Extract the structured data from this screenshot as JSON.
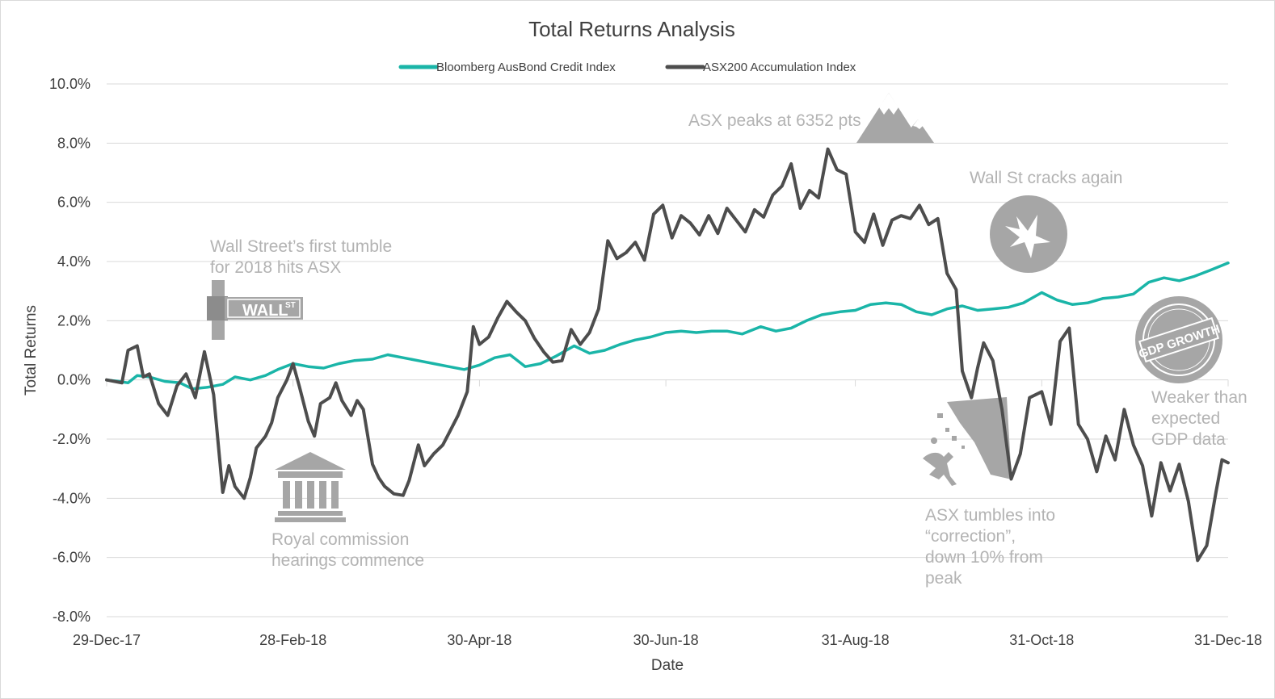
{
  "chart_data": {
    "type": "line",
    "title": "Total Returns Analysis",
    "xlabel": "Date",
    "ylabel": "Total Returns",
    "x_range": [
      "2017-12-29",
      "2018-12-31"
    ],
    "ylim": [
      -8.0,
      10.0
    ],
    "y_ticks": [
      "10.0%",
      "8.0%",
      "6.0%",
      "4.0%",
      "2.0%",
      "0.0%",
      "-2.0%",
      "-4.0%",
      "-6.0%",
      "-8.0%"
    ],
    "y_tick_values": [
      10,
      8,
      6,
      4,
      2,
      0,
      -2,
      -4,
      -6,
      -8
    ],
    "x_ticks": [
      "29-Dec-17",
      "28-Feb-18",
      "30-Apr-18",
      "30-Jun-18",
      "31-Aug-18",
      "31-Oct-18",
      "31-Dec-18"
    ],
    "x_tick_dates": [
      "2017-12-29",
      "2018-02-28",
      "2018-04-30",
      "2018-06-30",
      "2018-08-31",
      "2018-10-31",
      "2018-12-31"
    ],
    "grid": "horizontal",
    "legend_position": "top-center",
    "series": [
      {
        "name": "Bloomberg AusBond Credit Index",
        "color": "#1ab5a8",
        "points": [
          [
            "2017-12-29",
            0.0
          ],
          [
            "2018-01-02",
            -0.05
          ],
          [
            "2018-01-05",
            -0.1
          ],
          [
            "2018-01-08",
            0.15
          ],
          [
            "2018-01-12",
            0.1
          ],
          [
            "2018-01-17",
            -0.05
          ],
          [
            "2018-01-22",
            -0.1
          ],
          [
            "2018-01-26",
            -0.3
          ],
          [
            "2018-01-31",
            -0.25
          ],
          [
            "2018-02-05",
            -0.15
          ],
          [
            "2018-02-09",
            0.1
          ],
          [
            "2018-02-14",
            0.0
          ],
          [
            "2018-02-19",
            0.15
          ],
          [
            "2018-02-23",
            0.35
          ],
          [
            "2018-02-28",
            0.55
          ],
          [
            "2018-03-05",
            0.45
          ],
          [
            "2018-03-10",
            0.4
          ],
          [
            "2018-03-15",
            0.55
          ],
          [
            "2018-03-20",
            0.65
          ],
          [
            "2018-03-26",
            0.7
          ],
          [
            "2018-03-31",
            0.85
          ],
          [
            "2018-04-05",
            0.75
          ],
          [
            "2018-04-10",
            0.65
          ],
          [
            "2018-04-15",
            0.55
          ],
          [
            "2018-04-20",
            0.45
          ],
          [
            "2018-04-25",
            0.35
          ],
          [
            "2018-04-30",
            0.5
          ],
          [
            "2018-05-05",
            0.75
          ],
          [
            "2018-05-10",
            0.85
          ],
          [
            "2018-05-15",
            0.45
          ],
          [
            "2018-05-20",
            0.55
          ],
          [
            "2018-05-25",
            0.8
          ],
          [
            "2018-05-31",
            1.15
          ],
          [
            "2018-06-05",
            0.9
          ],
          [
            "2018-06-10",
            1.0
          ],
          [
            "2018-06-15",
            1.2
          ],
          [
            "2018-06-20",
            1.35
          ],
          [
            "2018-06-25",
            1.45
          ],
          [
            "2018-06-30",
            1.6
          ],
          [
            "2018-07-05",
            1.65
          ],
          [
            "2018-07-10",
            1.6
          ],
          [
            "2018-07-15",
            1.65
          ],
          [
            "2018-07-20",
            1.65
          ],
          [
            "2018-07-25",
            1.55
          ],
          [
            "2018-07-31",
            1.8
          ],
          [
            "2018-08-05",
            1.65
          ],
          [
            "2018-08-10",
            1.75
          ],
          [
            "2018-08-15",
            2.0
          ],
          [
            "2018-08-20",
            2.2
          ],
          [
            "2018-08-26",
            2.3
          ],
          [
            "2018-08-31",
            2.35
          ],
          [
            "2018-09-05",
            2.55
          ],
          [
            "2018-09-10",
            2.6
          ],
          [
            "2018-09-15",
            2.55
          ],
          [
            "2018-09-20",
            2.3
          ],
          [
            "2018-09-25",
            2.2
          ],
          [
            "2018-09-30",
            2.4
          ],
          [
            "2018-10-05",
            2.5
          ],
          [
            "2018-10-10",
            2.35
          ],
          [
            "2018-10-15",
            2.4
          ],
          [
            "2018-10-20",
            2.45
          ],
          [
            "2018-10-25",
            2.6
          ],
          [
            "2018-10-31",
            2.95
          ],
          [
            "2018-11-05",
            2.7
          ],
          [
            "2018-11-10",
            2.55
          ],
          [
            "2018-11-15",
            2.6
          ],
          [
            "2018-11-20",
            2.75
          ],
          [
            "2018-11-25",
            2.8
          ],
          [
            "2018-11-30",
            2.9
          ],
          [
            "2018-12-05",
            3.3
          ],
          [
            "2018-12-10",
            3.45
          ],
          [
            "2018-12-15",
            3.35
          ],
          [
            "2018-12-20",
            3.5
          ],
          [
            "2018-12-25",
            3.7
          ],
          [
            "2018-12-31",
            3.95
          ]
        ]
      },
      {
        "name": "ASX200 Accumulation Index",
        "color": "#4d4d4d",
        "points": [
          [
            "2017-12-29",
            0.0
          ],
          [
            "2018-01-03",
            -0.1
          ],
          [
            "2018-01-05",
            1.0
          ],
          [
            "2018-01-08",
            1.15
          ],
          [
            "2018-01-10",
            0.1
          ],
          [
            "2018-01-12",
            0.2
          ],
          [
            "2018-01-15",
            -0.8
          ],
          [
            "2018-01-18",
            -1.2
          ],
          [
            "2018-01-21",
            -0.2
          ],
          [
            "2018-01-24",
            0.2
          ],
          [
            "2018-01-27",
            -0.6
          ],
          [
            "2018-01-30",
            0.95
          ],
          [
            "2018-02-02",
            -0.5
          ],
          [
            "2018-02-05",
            -3.8
          ],
          [
            "2018-02-07",
            -2.9
          ],
          [
            "2018-02-09",
            -3.6
          ],
          [
            "2018-02-12",
            -4.0
          ],
          [
            "2018-02-14",
            -3.3
          ],
          [
            "2018-02-16",
            -2.3
          ],
          [
            "2018-02-19",
            -1.9
          ],
          [
            "2018-02-21",
            -1.45
          ],
          [
            "2018-02-23",
            -0.6
          ],
          [
            "2018-02-26",
            0.0
          ],
          [
            "2018-02-28",
            0.55
          ],
          [
            "2018-03-02",
            -0.2
          ],
          [
            "2018-03-05",
            -1.4
          ],
          [
            "2018-03-07",
            -1.9
          ],
          [
            "2018-03-09",
            -0.8
          ],
          [
            "2018-03-12",
            -0.6
          ],
          [
            "2018-03-14",
            -0.1
          ],
          [
            "2018-03-16",
            -0.7
          ],
          [
            "2018-03-19",
            -1.2
          ],
          [
            "2018-03-21",
            -0.7
          ],
          [
            "2018-03-23",
            -1.0
          ],
          [
            "2018-03-26",
            -2.85
          ],
          [
            "2018-03-28",
            -3.3
          ],
          [
            "2018-03-30",
            -3.6
          ],
          [
            "2018-04-02",
            -3.85
          ],
          [
            "2018-04-05",
            -3.9
          ],
          [
            "2018-04-07",
            -3.4
          ],
          [
            "2018-04-10",
            -2.2
          ],
          [
            "2018-04-12",
            -2.9
          ],
          [
            "2018-04-15",
            -2.5
          ],
          [
            "2018-04-18",
            -2.2
          ],
          [
            "2018-04-20",
            -1.8
          ],
          [
            "2018-04-23",
            -1.2
          ],
          [
            "2018-04-26",
            -0.4
          ],
          [
            "2018-04-28",
            1.8
          ],
          [
            "2018-04-30",
            1.2
          ],
          [
            "2018-05-03",
            1.45
          ],
          [
            "2018-05-06",
            2.1
          ],
          [
            "2018-05-09",
            2.65
          ],
          [
            "2018-05-12",
            2.3
          ],
          [
            "2018-05-15",
            2.0
          ],
          [
            "2018-05-18",
            1.4
          ],
          [
            "2018-05-21",
            0.95
          ],
          [
            "2018-05-24",
            0.6
          ],
          [
            "2018-05-27",
            0.65
          ],
          [
            "2018-05-30",
            1.7
          ],
          [
            "2018-06-02",
            1.2
          ],
          [
            "2018-06-05",
            1.6
          ],
          [
            "2018-06-08",
            2.4
          ],
          [
            "2018-06-11",
            4.7
          ],
          [
            "2018-06-14",
            4.1
          ],
          [
            "2018-06-17",
            4.3
          ],
          [
            "2018-06-20",
            4.65
          ],
          [
            "2018-06-23",
            4.05
          ],
          [
            "2018-06-26",
            5.6
          ],
          [
            "2018-06-29",
            5.9
          ],
          [
            "2018-07-02",
            4.8
          ],
          [
            "2018-07-05",
            5.55
          ],
          [
            "2018-07-08",
            5.3
          ],
          [
            "2018-07-11",
            4.9
          ],
          [
            "2018-07-14",
            5.55
          ],
          [
            "2018-07-17",
            4.95
          ],
          [
            "2018-07-20",
            5.8
          ],
          [
            "2018-07-23",
            5.4
          ],
          [
            "2018-07-26",
            5.0
          ],
          [
            "2018-07-29",
            5.75
          ],
          [
            "2018-08-01",
            5.5
          ],
          [
            "2018-08-04",
            6.25
          ],
          [
            "2018-08-07",
            6.55
          ],
          [
            "2018-08-10",
            7.3
          ],
          [
            "2018-08-13",
            5.8
          ],
          [
            "2018-08-16",
            6.4
          ],
          [
            "2018-08-19",
            6.15
          ],
          [
            "2018-08-22",
            7.8
          ],
          [
            "2018-08-25",
            7.1
          ],
          [
            "2018-08-28",
            6.95
          ],
          [
            "2018-08-31",
            5.0
          ],
          [
            "2018-09-03",
            4.65
          ],
          [
            "2018-09-06",
            5.6
          ],
          [
            "2018-09-09",
            4.55
          ],
          [
            "2018-09-12",
            5.4
          ],
          [
            "2018-09-15",
            5.55
          ],
          [
            "2018-09-18",
            5.45
          ],
          [
            "2018-09-21",
            5.9
          ],
          [
            "2018-09-24",
            5.25
          ],
          [
            "2018-09-27",
            5.45
          ],
          [
            "2018-09-30",
            3.6
          ],
          [
            "2018-10-03",
            3.05
          ],
          [
            "2018-10-05",
            0.3
          ],
          [
            "2018-10-08",
            -0.6
          ],
          [
            "2018-10-10",
            0.4
          ],
          [
            "2018-10-12",
            1.25
          ],
          [
            "2018-10-15",
            0.65
          ],
          [
            "2018-10-18",
            -1.0
          ],
          [
            "2018-10-21",
            -3.35
          ],
          [
            "2018-10-24",
            -2.5
          ],
          [
            "2018-10-27",
            -0.6
          ],
          [
            "2018-10-31",
            -0.4
          ],
          [
            "2018-11-03",
            -1.5
          ],
          [
            "2018-11-06",
            1.3
          ],
          [
            "2018-11-09",
            1.75
          ],
          [
            "2018-11-12",
            -1.5
          ],
          [
            "2018-11-15",
            -2.0
          ],
          [
            "2018-11-18",
            -3.1
          ],
          [
            "2018-11-21",
            -1.9
          ],
          [
            "2018-11-24",
            -2.7
          ],
          [
            "2018-11-27",
            -1.0
          ],
          [
            "2018-11-30",
            -2.2
          ],
          [
            "2018-12-03",
            -2.9
          ],
          [
            "2018-12-06",
            -4.6
          ],
          [
            "2018-12-09",
            -2.8
          ],
          [
            "2018-12-12",
            -3.75
          ],
          [
            "2018-12-15",
            -2.85
          ],
          [
            "2018-12-18",
            -4.1
          ],
          [
            "2018-12-21",
            -6.1
          ],
          [
            "2018-12-24",
            -5.6
          ],
          [
            "2018-12-27",
            -3.8
          ],
          [
            "2018-12-29",
            -2.7
          ],
          [
            "2018-12-31",
            -2.8
          ]
        ]
      }
    ],
    "annotations": [
      {
        "lines": [
          "Wall Street’s first tumble",
          "for 2018 hits ASX"
        ]
      },
      {
        "lines": [
          "Royal commission",
          "hearings commence"
        ]
      },
      {
        "lines": [
          "ASX peaks at 6352 pts"
        ]
      },
      {
        "lines": [
          "Wall St cracks again"
        ]
      },
      {
        "lines": [
          "ASX tumbles into",
          "“correction”,",
          "down 10% from",
          "peak"
        ]
      },
      {
        "lines": [
          "Weaker than",
          "expected",
          "GDP data"
        ]
      }
    ]
  },
  "icons": {
    "wall_street_sign": {
      "icon": "street-sign-icon",
      "text": "WALL",
      "superscript": "ST"
    },
    "bank": {
      "icon": "bank-building-icon"
    },
    "mountain": {
      "icon": "mountain-peak-icon"
    },
    "crack": {
      "icon": "cracked-circle-icon"
    },
    "cliff_fall": {
      "icon": "cliff-fall-icon"
    },
    "gdp_stamp": {
      "icon": "gdp-growth-stamp-icon",
      "text": "GDP GROWTH"
    }
  }
}
